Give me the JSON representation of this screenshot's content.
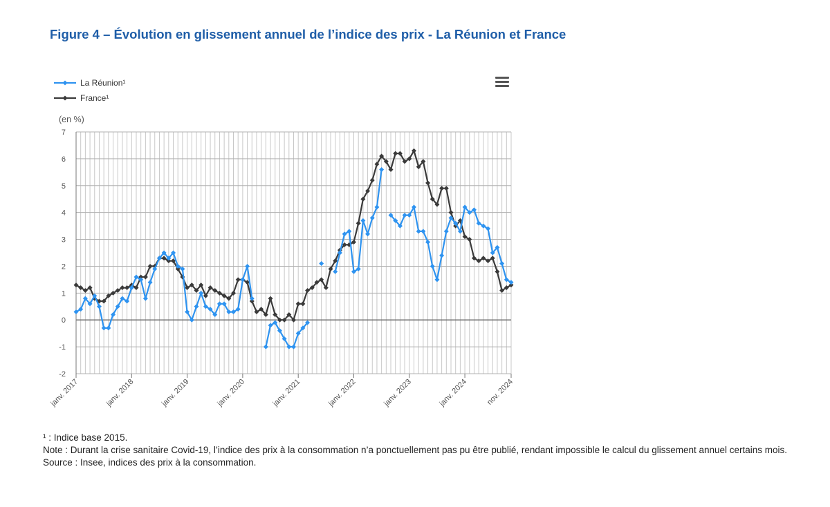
{
  "title": "Figure 4 – Évolution en glissement annuel de l’indice des prix - La Réunion et France",
  "chart_data": {
    "type": "line",
    "unit_label": "(en %)",
    "ylim": [
      -2,
      7
    ],
    "yticks": [
      -2,
      -1,
      0,
      1,
      2,
      3,
      4,
      5,
      6,
      7
    ],
    "x_start": "janv. 2017",
    "x_end": "nov. 2024",
    "xtick_labels": [
      {
        "month_index": 0,
        "label": "janv. 2017"
      },
      {
        "month_index": 12,
        "label": "janv. 2018"
      },
      {
        "month_index": 24,
        "label": "janv. 2019"
      },
      {
        "month_index": 36,
        "label": "janv. 2020"
      },
      {
        "month_index": 48,
        "label": "janv. 2021"
      },
      {
        "month_index": 60,
        "label": "janv. 2022"
      },
      {
        "month_index": 72,
        "label": "janv. 2023"
      },
      {
        "month_index": 84,
        "label": "janv. 2024"
      },
      {
        "month_index": 94,
        "label": "nov. 2024"
      }
    ],
    "grid": true,
    "legend_position": "top-left",
    "series": [
      {
        "name": "La Réunion¹",
        "color": "#2e93f0",
        "values": [
          0.3,
          0.4,
          0.8,
          0.6,
          0.9,
          0.5,
          -0.3,
          -0.3,
          0.2,
          0.5,
          0.8,
          0.7,
          1.2,
          1.6,
          1.5,
          0.8,
          1.4,
          1.9,
          2.3,
          2.5,
          2.3,
          2.5,
          2.0,
          1.9,
          0.3,
          0.0,
          0.5,
          1.0,
          0.5,
          0.4,
          0.2,
          0.6,
          0.6,
          0.3,
          0.3,
          0.4,
          1.5,
          2.0,
          0.8,
          null,
          null,
          -1.0,
          -0.2,
          -0.1,
          -0.4,
          -0.7,
          -1.0,
          -1.0,
          -0.5,
          -0.3,
          -0.1,
          null,
          null,
          2.1,
          null,
          null,
          1.8,
          2.5,
          3.2,
          3.3,
          1.8,
          1.9,
          3.7,
          3.2,
          3.8,
          4.2,
          5.6,
          null,
          3.9,
          3.7,
          3.5,
          3.9,
          3.9,
          4.2,
          3.3,
          3.3,
          2.9,
          2.0,
          1.5,
          2.4,
          3.3,
          3.8,
          3.6,
          3.3,
          4.2,
          4.0,
          4.1,
          3.6,
          3.5,
          3.4,
          2.5,
          2.7,
          2.1,
          1.5,
          1.4
        ]
      },
      {
        "name": "France¹",
        "color": "#3a3a3a",
        "values": [
          1.3,
          1.2,
          1.1,
          1.2,
          0.8,
          0.7,
          0.7,
          0.9,
          1.0,
          1.1,
          1.2,
          1.2,
          1.3,
          1.2,
          1.6,
          1.6,
          2.0,
          2.0,
          2.3,
          2.3,
          2.2,
          2.2,
          1.9,
          1.6,
          1.2,
          1.3,
          1.1,
          1.3,
          0.9,
          1.2,
          1.1,
          1.0,
          0.9,
          0.8,
          1.0,
          1.5,
          1.5,
          1.4,
          0.7,
          0.3,
          0.4,
          0.2,
          0.8,
          0.2,
          0.0,
          0.0,
          0.2,
          0.0,
          0.6,
          0.6,
          1.1,
          1.2,
          1.4,
          1.5,
          1.2,
          1.9,
          2.2,
          2.6,
          2.8,
          2.8,
          2.9,
          3.6,
          4.5,
          4.8,
          5.2,
          5.8,
          6.1,
          5.9,
          5.6,
          6.2,
          6.2,
          5.9,
          6.0,
          6.3,
          5.7,
          5.9,
          5.1,
          4.5,
          4.3,
          4.9,
          4.9,
          4.0,
          3.5,
          3.7,
          3.1,
          3.0,
          2.3,
          2.2,
          2.3,
          2.2,
          2.3,
          1.8,
          1.1,
          1.2,
          1.3
        ]
      }
    ]
  },
  "notes": {
    "footnote": "¹ : Indice base 2015.",
    "note": "Note : Durant la crise sanitaire Covid-19, l’indice des prix à la consommation n’a ponctuellement pas pu être publié, rendant impossible le calcul du glissement annuel certains mois.",
    "source": "Source : Insee, indices des prix à la consommation."
  }
}
